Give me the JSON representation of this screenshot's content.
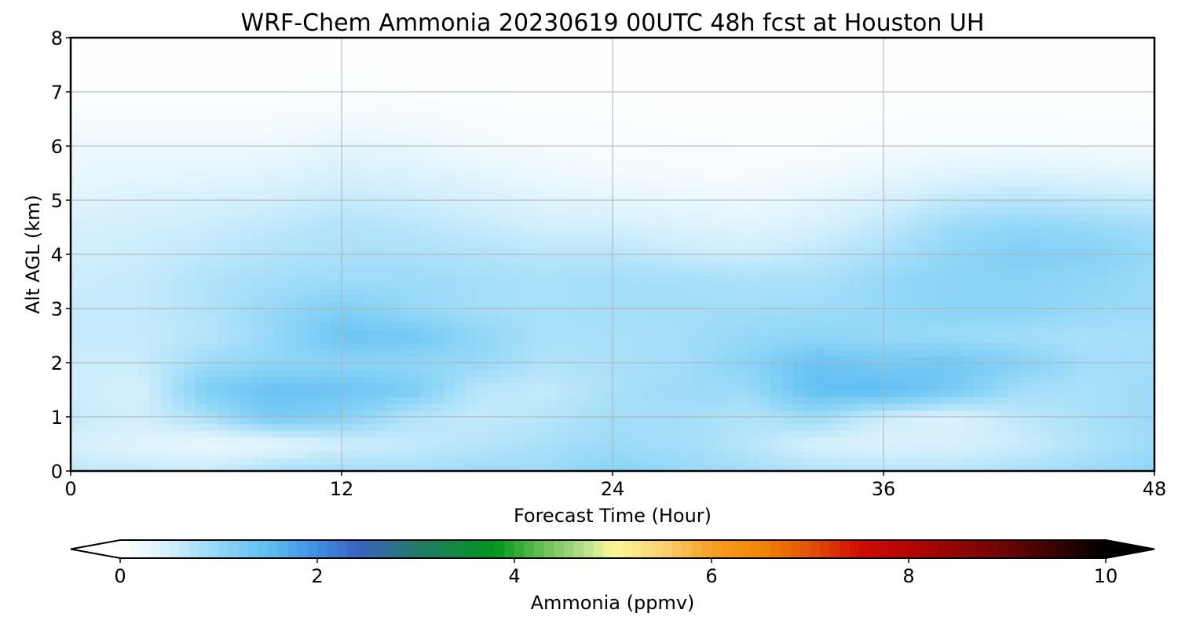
{
  "chart_data": {
    "type": "heatmap",
    "title": "WRF-Chem Ammonia  20230619 00UTC 48h fcst at Houston UH",
    "xlabel": "Forecast Time (Hour)",
    "ylabel": "Alt AGL (km)",
    "xlim": [
      0,
      48
    ],
    "ylim": [
      0,
      8
    ],
    "x_ticks": [
      0,
      12,
      24,
      36,
      48
    ],
    "y_ticks": [
      0,
      1,
      2,
      3,
      4,
      5,
      6,
      7,
      8
    ],
    "grid": true,
    "x": [
      0,
      3,
      6,
      9,
      12,
      15,
      18,
      21,
      24,
      27,
      30,
      33,
      36,
      39,
      42,
      45,
      48
    ],
    "y": [
      0,
      0.5,
      1,
      1.5,
      2,
      2.5,
      3,
      3.5,
      4,
      4.5,
      5,
      5.5,
      6,
      6.5,
      7,
      7.5,
      8
    ],
    "values": [
      [
        0.65,
        0.6,
        0.55,
        0.8,
        0.85,
        0.8,
        0.9,
        0.9,
        1.05,
        0.95,
        0.85,
        0.75,
        0.7,
        0.7,
        0.8,
        0.9,
        1.0
      ],
      [
        0.45,
        0.35,
        0.25,
        0.3,
        0.5,
        0.6,
        0.7,
        0.8,
        0.9,
        0.85,
        0.7,
        0.45,
        0.4,
        0.45,
        0.55,
        0.75,
        0.9
      ],
      [
        0.6,
        0.5,
        0.8,
        1.25,
        1.1,
        0.75,
        0.6,
        0.7,
        0.85,
        0.85,
        0.75,
        0.9,
        0.55,
        0.4,
        0.65,
        0.8,
        0.9
      ],
      [
        0.55,
        0.45,
        1.15,
        1.4,
        1.35,
        1.2,
        0.7,
        0.6,
        0.8,
        0.9,
        0.9,
        1.45,
        1.5,
        1.25,
        0.85,
        0.8,
        0.9
      ],
      [
        0.55,
        0.55,
        0.9,
        1.0,
        1.05,
        1.0,
        0.95,
        0.75,
        0.8,
        0.85,
        1.05,
        1.4,
        1.25,
        1.3,
        1.1,
        0.85,
        0.85
      ],
      [
        0.6,
        0.6,
        0.7,
        0.95,
        1.35,
        1.3,
        1.0,
        0.8,
        0.8,
        0.85,
        0.95,
        1.0,
        0.95,
        0.9,
        0.85,
        0.8,
        0.85
      ],
      [
        0.6,
        0.6,
        0.75,
        0.95,
        1.15,
        0.95,
        0.85,
        0.8,
        0.85,
        0.85,
        0.85,
        0.9,
        0.95,
        1.05,
        1.05,
        0.95,
        0.9
      ],
      [
        0.55,
        0.6,
        0.75,
        0.85,
        0.9,
        0.9,
        0.85,
        0.8,
        0.85,
        0.85,
        0.8,
        0.8,
        0.95,
        1.05,
        1.05,
        1.0,
        0.9
      ],
      [
        0.5,
        0.55,
        0.65,
        0.75,
        0.8,
        0.8,
        0.75,
        0.7,
        0.7,
        0.6,
        0.55,
        0.65,
        0.8,
        1.0,
        1.15,
        1.1,
        0.95
      ],
      [
        0.45,
        0.5,
        0.55,
        0.65,
        0.75,
        0.7,
        0.6,
        0.5,
        0.5,
        0.4,
        0.35,
        0.45,
        0.65,
        0.9,
        1.0,
        0.95,
        0.85
      ],
      [
        0.35,
        0.4,
        0.45,
        0.5,
        0.6,
        0.55,
        0.45,
        0.35,
        0.3,
        0.25,
        0.2,
        0.3,
        0.45,
        0.65,
        0.7,
        0.65,
        0.6
      ],
      [
        0.25,
        0.3,
        0.3,
        0.35,
        0.45,
        0.4,
        0.3,
        0.2,
        0.15,
        0.1,
        0.1,
        0.15,
        0.25,
        0.35,
        0.4,
        0.35,
        0.3
      ],
      [
        0.2,
        0.2,
        0.2,
        0.2,
        0.3,
        0.25,
        0.15,
        0.1,
        0.08,
        0.06,
        0.05,
        0.05,
        0.1,
        0.15,
        0.15,
        0.12,
        0.1
      ],
      [
        0.1,
        0.08,
        0.08,
        0.1,
        0.15,
        0.12,
        0.08,
        0.06,
        0.05,
        0.04,
        0.04,
        0.04,
        0.05,
        0.06,
        0.06,
        0.05,
        0.05
      ],
      [
        0.04,
        0.04,
        0.04,
        0.04,
        0.05,
        0.04,
        0.04,
        0.03,
        0.03,
        0.03,
        0.03,
        0.03,
        0.03,
        0.03,
        0.03,
        0.03,
        0.03
      ],
      [
        0.03,
        0.03,
        0.03,
        0.03,
        0.03,
        0.03,
        0.03,
        0.03,
        0.03,
        0.03,
        0.03,
        0.03,
        0.03,
        0.03,
        0.03,
        0.03,
        0.03
      ],
      [
        0.03,
        0.03,
        0.03,
        0.03,
        0.03,
        0.03,
        0.03,
        0.03,
        0.03,
        0.03,
        0.03,
        0.03,
        0.03,
        0.03,
        0.03,
        0.03,
        0.03
      ]
    ],
    "colorbar": {
      "label": "Ammonia  (ppmv)",
      "range": [
        0,
        10
      ],
      "ticks": [
        0,
        2,
        4,
        6,
        8,
        10
      ],
      "extend": "both",
      "stops": [
        {
          "v": 0,
          "color": "#ffffff"
        },
        {
          "v": 0.5,
          "color": "#d2effc"
        },
        {
          "v": 1.0,
          "color": "#8fd6f7"
        },
        {
          "v": 1.5,
          "color": "#5fbef2"
        },
        {
          "v": 2.0,
          "color": "#3f8ee6"
        },
        {
          "v": 2.4,
          "color": "#3a63c3"
        },
        {
          "v": 3.0,
          "color": "#237a6a"
        },
        {
          "v": 3.8,
          "color": "#00961c"
        },
        {
          "v": 4.2,
          "color": "#57b847"
        },
        {
          "v": 4.7,
          "color": "#b4e08a"
        },
        {
          "v": 5.0,
          "color": "#fcf896"
        },
        {
          "v": 5.5,
          "color": "#f9d272"
        },
        {
          "v": 6.0,
          "color": "#f89f24"
        },
        {
          "v": 6.5,
          "color": "#f28606"
        },
        {
          "v": 7.0,
          "color": "#e45108"
        },
        {
          "v": 7.5,
          "color": "#cf0e05"
        },
        {
          "v": 8.0,
          "color": "#b60404"
        },
        {
          "v": 9.0,
          "color": "#6b0404"
        },
        {
          "v": 10.0,
          "color": "#000000"
        }
      ]
    }
  }
}
